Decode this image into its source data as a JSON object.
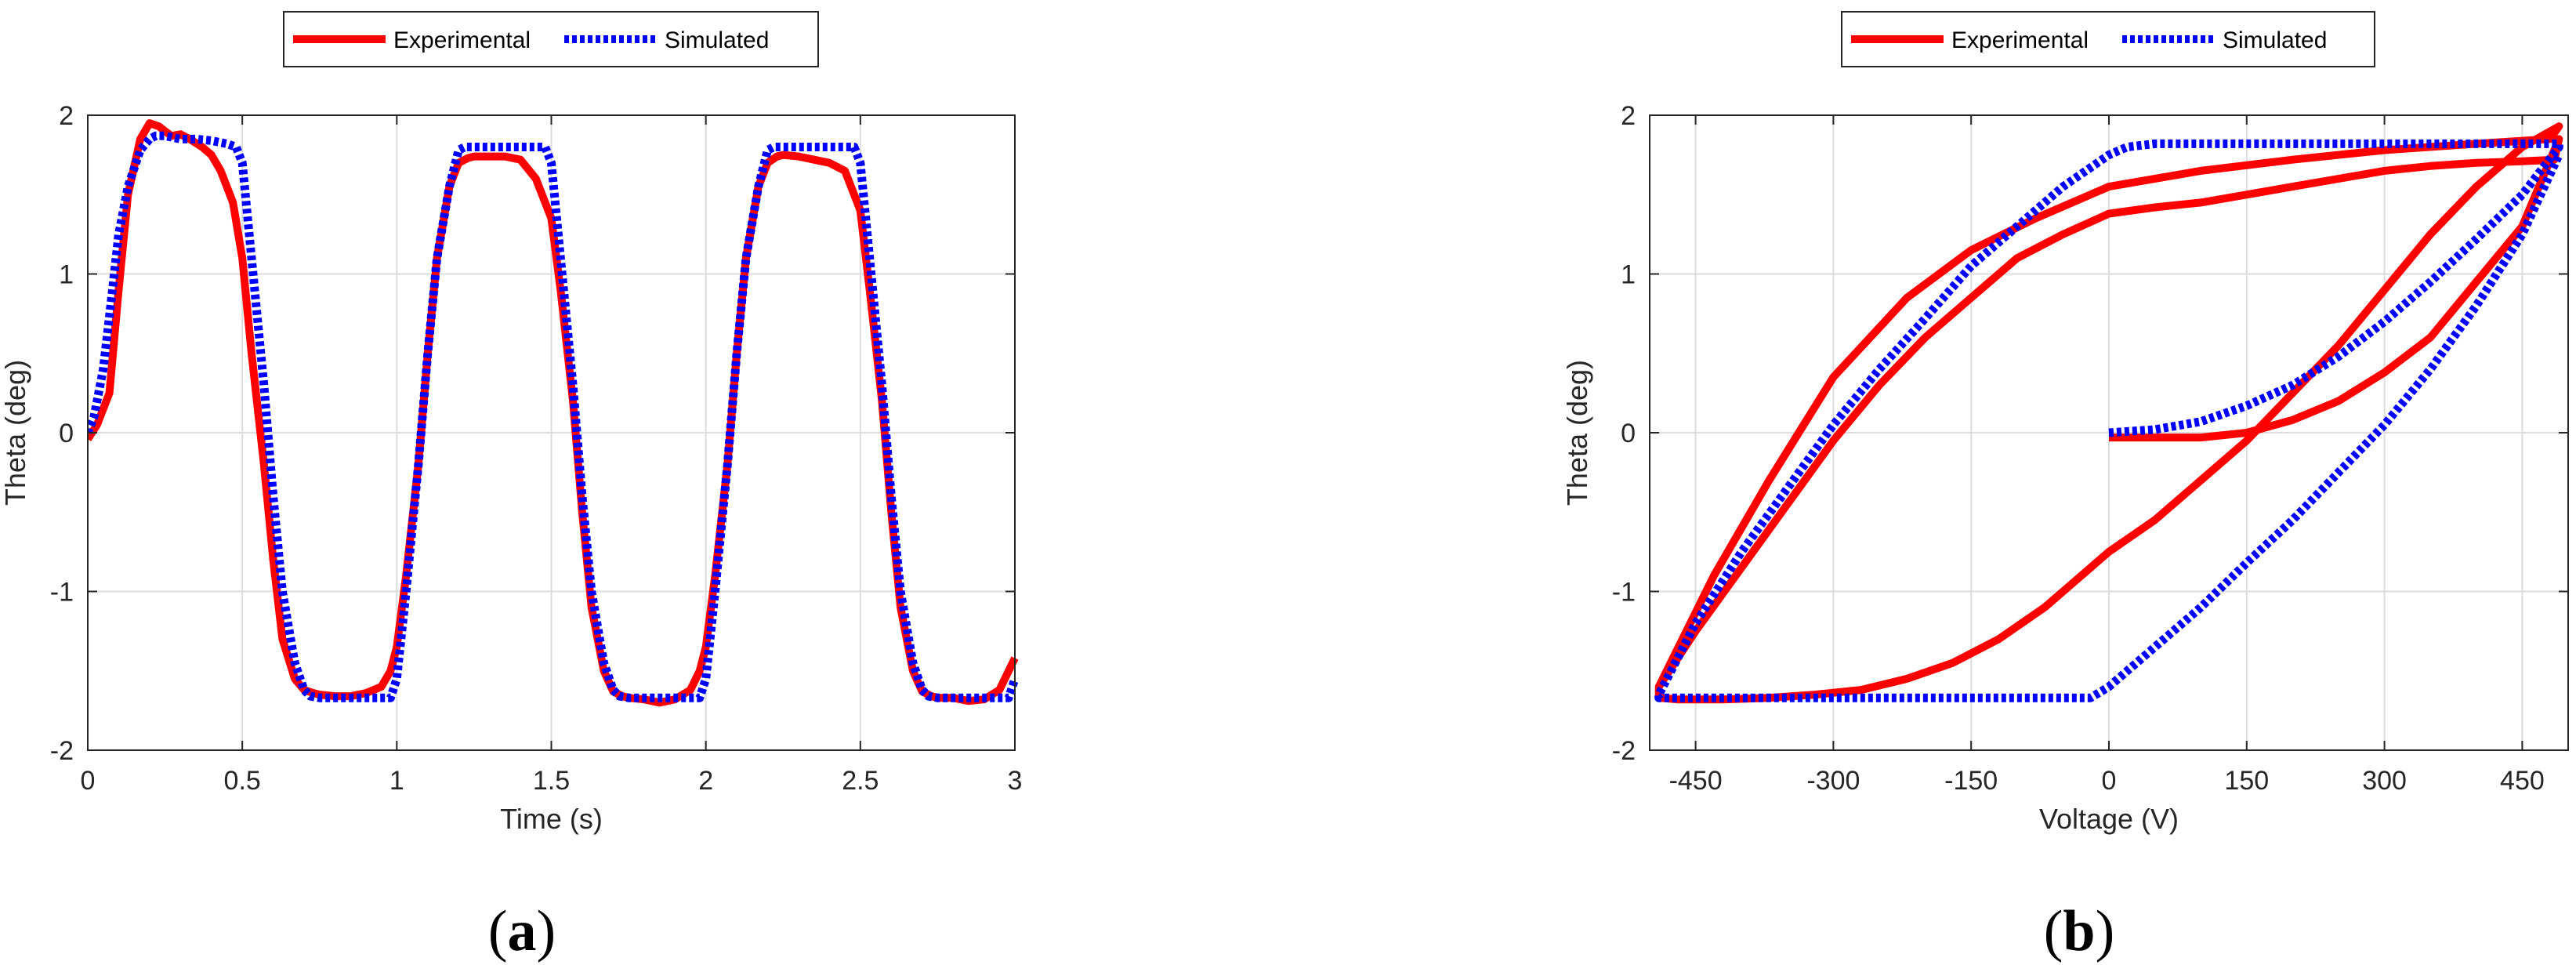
{
  "chart_data": [
    {
      "type": "line",
      "panel_label": {
        "open": "(",
        "letter": "a",
        "close": ")"
      },
      "xlabel": "Time (s)",
      "ylabel": "Theta (deg)",
      "xlim": [
        0,
        3
      ],
      "ylim": [
        -2,
        2
      ],
      "xticks": [
        0,
        0.5,
        1,
        1.5,
        2,
        2.5,
        3
      ],
      "xtick_labels": [
        "0",
        "0.5",
        "1",
        "1.5",
        "2",
        "2.5",
        "3"
      ],
      "yticks": [
        -2,
        -1,
        0,
        1,
        2
      ],
      "ytick_labels": [
        "-2",
        "-1",
        "0",
        "1",
        "2"
      ],
      "grid": true,
      "legend_position": "top-center-outside",
      "series": [
        {
          "name": "Experimental",
          "color": "#ff0000",
          "style": "solid",
          "x": [
            0,
            0.03,
            0.07,
            0.1,
            0.13,
            0.17,
            0.2,
            0.23,
            0.25,
            0.27,
            0.3,
            0.33,
            0.37,
            0.4,
            0.43,
            0.47,
            0.5,
            0.53,
            0.57,
            0.6,
            0.63,
            0.67,
            0.7,
            0.73,
            0.75,
            0.8,
            0.85,
            0.9,
            0.95,
            0.98,
            1.0,
            1.03,
            1.07,
            1.1,
            1.13,
            1.17,
            1.2,
            1.23,
            1.25,
            1.3,
            1.35,
            1.4,
            1.45,
            1.5,
            1.53,
            1.57,
            1.6,
            1.63,
            1.67,
            1.7,
            1.73,
            1.75,
            1.8,
            1.85,
            1.9,
            1.95,
            1.98,
            2.0,
            2.03,
            2.07,
            2.1,
            2.13,
            2.17,
            2.2,
            2.23,
            2.25,
            2.3,
            2.35,
            2.4,
            2.45,
            2.5,
            2.53,
            2.57,
            2.6,
            2.63,
            2.67,
            2.7,
            2.73,
            2.75,
            2.8,
            2.85,
            2.9,
            2.95,
            3.0
          ],
          "y": [
            -0.04,
            0.05,
            0.25,
            0.9,
            1.5,
            1.85,
            1.95,
            1.93,
            1.9,
            1.87,
            1.88,
            1.85,
            1.8,
            1.75,
            1.65,
            1.45,
            1.1,
            0.5,
            -0.2,
            -0.8,
            -1.3,
            -1.55,
            -1.62,
            -1.64,
            -1.65,
            -1.66,
            -1.66,
            -1.64,
            -1.6,
            -1.5,
            -1.35,
            -0.9,
            -0.2,
            0.5,
            1.1,
            1.55,
            1.7,
            1.73,
            1.74,
            1.74,
            1.74,
            1.72,
            1.6,
            1.35,
            0.9,
            0.2,
            -0.5,
            -1.1,
            -1.5,
            -1.63,
            -1.66,
            -1.67,
            -1.68,
            -1.7,
            -1.68,
            -1.62,
            -1.5,
            -1.35,
            -0.9,
            -0.2,
            0.5,
            1.1,
            1.55,
            1.7,
            1.74,
            1.75,
            1.74,
            1.72,
            1.7,
            1.65,
            1.4,
            0.9,
            0.2,
            -0.5,
            -1.1,
            -1.5,
            -1.63,
            -1.66,
            -1.67,
            -1.67,
            -1.69,
            -1.68,
            -1.62,
            -1.42
          ]
        },
        {
          "name": "Simulated",
          "color": "#0000ff",
          "style": "dotted",
          "x": [
            0,
            0.02,
            0.05,
            0.08,
            0.1,
            0.13,
            0.17,
            0.2,
            0.22,
            0.25,
            0.3,
            0.35,
            0.4,
            0.45,
            0.48,
            0.5,
            0.53,
            0.57,
            0.6,
            0.63,
            0.67,
            0.7,
            0.72,
            0.75,
            0.8,
            0.85,
            0.9,
            0.95,
            0.98,
            1.0,
            1.03,
            1.07,
            1.1,
            1.13,
            1.17,
            1.2,
            1.22,
            1.25,
            1.3,
            1.35,
            1.4,
            1.45,
            1.48,
            1.5,
            1.53,
            1.57,
            1.6,
            1.63,
            1.67,
            1.7,
            1.72,
            1.75,
            1.8,
            1.85,
            1.9,
            1.95,
            1.98,
            2.0,
            2.03,
            2.07,
            2.1,
            2.13,
            2.17,
            2.2,
            2.22,
            2.25,
            2.3,
            2.35,
            2.4,
            2.45,
            2.48,
            2.5,
            2.53,
            2.57,
            2.6,
            2.63,
            2.67,
            2.7,
            2.72,
            2.75,
            2.8,
            2.85,
            2.9,
            2.95,
            2.98,
            3.0
          ],
          "y": [
            0,
            0.1,
            0.4,
            0.9,
            1.25,
            1.55,
            1.78,
            1.85,
            1.87,
            1.87,
            1.85,
            1.85,
            1.84,
            1.82,
            1.8,
            1.7,
            1.1,
            0.3,
            -0.4,
            -1.0,
            -1.45,
            -1.62,
            -1.66,
            -1.67,
            -1.67,
            -1.67,
            -1.67,
            -1.67,
            -1.67,
            -1.55,
            -1.0,
            -0.2,
            0.5,
            1.1,
            1.55,
            1.78,
            1.8,
            1.8,
            1.8,
            1.8,
            1.8,
            1.8,
            1.8,
            1.7,
            1.1,
            0.3,
            -0.4,
            -1.0,
            -1.45,
            -1.62,
            -1.66,
            -1.67,
            -1.67,
            -1.67,
            -1.67,
            -1.67,
            -1.67,
            -1.55,
            -1.0,
            -0.2,
            0.5,
            1.1,
            1.55,
            1.78,
            1.8,
            1.8,
            1.8,
            1.8,
            1.8,
            1.8,
            1.8,
            1.7,
            1.1,
            0.3,
            -0.4,
            -1.0,
            -1.45,
            -1.62,
            -1.66,
            -1.67,
            -1.67,
            -1.67,
            -1.67,
            -1.67,
            -1.67,
            -1.55
          ]
        }
      ]
    },
    {
      "type": "line",
      "panel_label": {
        "open": "(",
        "letter": "b",
        "close": ")"
      },
      "xlabel": "Voltage (V)",
      "ylabel": "Theta (deg)",
      "xlim": [
        -500,
        500
      ],
      "ylim": [
        -2,
        2
      ],
      "xticks": [
        -450,
        -300,
        -150,
        0,
        150,
        300,
        450
      ],
      "xtick_labels": [
        "-450",
        "-300",
        "-150",
        "0",
        "150",
        "300",
        "450"
      ],
      "yticks": [
        -2,
        -1,
        0,
        1,
        2
      ],
      "ytick_labels": [
        "-2",
        "-1",
        "0",
        "1",
        "2"
      ],
      "grid": true,
      "legend_position": "top-center-outside",
      "series": [
        {
          "name": "Experimental",
          "color": "#ff0000",
          "style": "solid",
          "x": [
            0,
            50,
            100,
            150,
            200,
            250,
            300,
            350,
            400,
            450,
            490,
            485,
            450,
            400,
            350,
            300,
            250,
            200,
            150,
            100,
            50,
            0,
            -50,
            -100,
            -150,
            -200,
            -250,
            -300,
            -350,
            -400,
            -450,
            -490,
            -490,
            -470,
            -420,
            -370,
            -320,
            -270,
            -220,
            -170,
            -120,
            -70,
            -20,
            0,
            50,
            100,
            150,
            200,
            250,
            300,
            350,
            400,
            450,
            490,
            480,
            400,
            300,
            200,
            100,
            0,
            -80,
            -150,
            -220,
            -300,
            -370,
            -430,
            -490
          ],
          "y": [
            -0.03,
            -0.03,
            -0.03,
            0.0,
            0.08,
            0.2,
            0.38,
            0.6,
            0.95,
            1.3,
            1.85,
            1.72,
            1.71,
            1.7,
            1.68,
            1.65,
            1.6,
            1.55,
            1.5,
            1.45,
            1.42,
            1.38,
            1.25,
            1.1,
            0.85,
            0.6,
            0.3,
            -0.05,
            -0.45,
            -0.85,
            -1.25,
            -1.6,
            -1.67,
            -1.68,
            -1.68,
            -1.67,
            -1.65,
            -1.62,
            -1.55,
            -1.45,
            -1.3,
            -1.1,
            -0.85,
            -0.75,
            -0.55,
            -0.3,
            -0.05,
            0.25,
            0.55,
            0.9,
            1.25,
            1.55,
            1.8,
            1.93,
            1.85,
            1.82,
            1.78,
            1.72,
            1.65,
            1.55,
            1.35,
            1.15,
            0.85,
            0.35,
            -0.3,
            -0.9,
            -1.6
          ]
        },
        {
          "name": "Simulated",
          "color": "#0000ff",
          "style": "dotted",
          "x": [
            0,
            50,
            100,
            150,
            200,
            250,
            300,
            350,
            400,
            450,
            490,
            490,
            450,
            400,
            300,
            200,
            100,
            50,
            20,
            0,
            -50,
            -100,
            -150,
            -200,
            -250,
            -300,
            -350,
            -400,
            -450,
            -490,
            -490,
            -400,
            -300,
            -200,
            -100,
            -20,
            0,
            50,
            100,
            150,
            200,
            250,
            300,
            350,
            400,
            450,
            490
          ],
          "y": [
            0,
            0.02,
            0.07,
            0.17,
            0.3,
            0.48,
            0.7,
            0.95,
            1.22,
            1.5,
            1.8,
            1.82,
            1.82,
            1.82,
            1.82,
            1.82,
            1.82,
            1.82,
            1.8,
            1.75,
            1.55,
            1.3,
            1.05,
            0.72,
            0.4,
            0.05,
            -0.35,
            -0.75,
            -1.2,
            -1.65,
            -1.67,
            -1.67,
            -1.67,
            -1.67,
            -1.67,
            -1.67,
            -1.6,
            -1.35,
            -1.1,
            -0.82,
            -0.55,
            -0.25,
            0.05,
            0.4,
            0.8,
            1.25,
            1.75
          ]
        }
      ]
    }
  ]
}
